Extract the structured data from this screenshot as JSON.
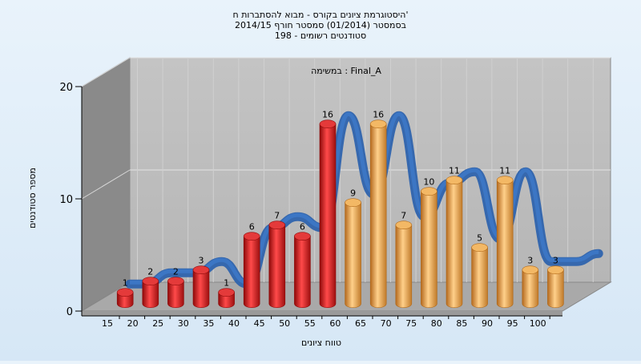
{
  "chart_data": {
    "type": "bar",
    "title_lines": [
      "היסטוגרמת ציונים בקורס - מבוא להסתברות ח'",
      "בסמסטר  (01/2014)  סמסטר חורף 2014/15",
      "סטודנטים רשומים - 198"
    ],
    "annotation": "במשימה : Final_A",
    "xlabel": "טווח ציונים",
    "ylabel": "מספר סטודנטים",
    "categories": [
      "15",
      "20",
      "25",
      "30",
      "35",
      "40",
      "45",
      "50",
      "55",
      "60",
      "65",
      "70",
      "75",
      "80",
      "85",
      "90",
      "95",
      "100"
    ],
    "values": [
      1,
      2,
      2,
      3,
      1,
      6,
      7,
      6,
      16,
      9,
      16,
      7,
      10,
      11,
      5,
      11,
      3,
      3
    ],
    "yticks": [
      0,
      10,
      20
    ],
    "ylim": [
      0,
      20
    ],
    "grid": true,
    "fail_color": "#dd1f1f",
    "pass_color": "#e9a23c",
    "trend_color": "#3d78c6",
    "pass_from_category": "60"
  }
}
